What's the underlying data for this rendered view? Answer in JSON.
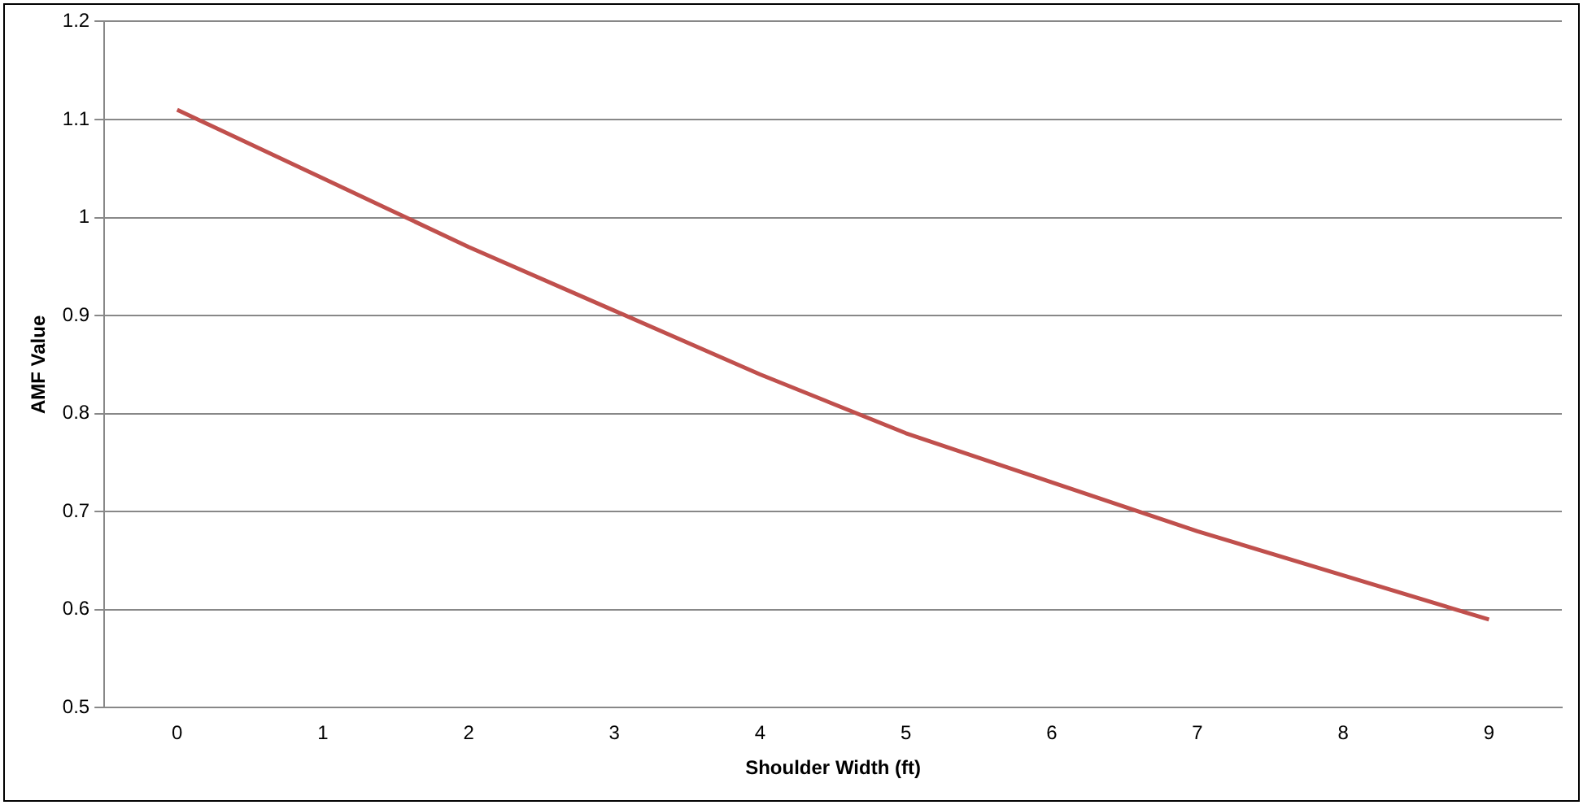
{
  "chart_data": {
    "type": "line",
    "xlabel": "Shoulder Width (ft)",
    "ylabel": "AMF Value",
    "categories": [
      "0",
      "1",
      "2",
      "3",
      "4",
      "5",
      "6",
      "7",
      "8",
      "9"
    ],
    "series": [
      {
        "color": "#c0504d",
        "values": [
          1.11,
          1.04,
          0.97,
          0.905,
          0.84,
          0.78,
          0.73,
          0.68,
          0.635,
          0.59
        ]
      }
    ],
    "ylim": [
      0.5,
      1.2
    ],
    "yticks": [
      0.5,
      0.6,
      0.7,
      0.8,
      0.9,
      1,
      1.1,
      1.2
    ],
    "grid": "y",
    "legend": false,
    "marker": "none"
  }
}
